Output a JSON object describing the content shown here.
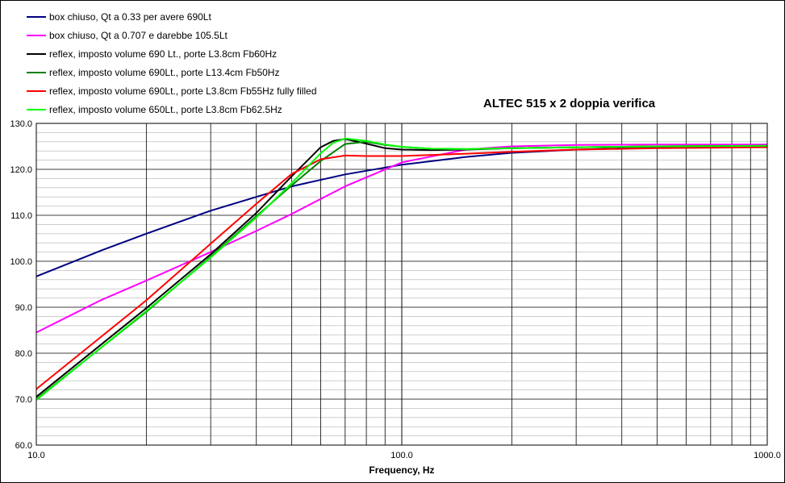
{
  "chart_data": {
    "type": "line",
    "title": "ALTEC 515 x 2 doppia verifica",
    "xlabel": "Frequency, Hz",
    "ylabel": "",
    "x_scale": "log",
    "xlim": [
      10,
      1000
    ],
    "ylim": [
      60,
      130
    ],
    "x_ticks": [
      "10.0",
      "100.0",
      "1000.0"
    ],
    "y_ticks": [
      "130.0",
      "120.0",
      "110.0",
      "100.0",
      "90.0",
      "80.0",
      "70.0",
      "60.0"
    ],
    "grid": true,
    "legend_position": "top-left",
    "series": [
      {
        "name": "box chiuso, Qt a 0.33 per avere 690Lt",
        "color": "#000080",
        "x": [
          10,
          15,
          20,
          30,
          40,
          50,
          70,
          100,
          150,
          200,
          300,
          500,
          700,
          1000
        ],
        "y": [
          96.7,
          102.3,
          106.0,
          111.0,
          114.0,
          116.3,
          118.9,
          121.0,
          122.7,
          123.6,
          124.3,
          124.8,
          125.0,
          125.1
        ]
      },
      {
        "name": "box chiuso, Qt a 0.707 e darebbe 105.5Lt",
        "color": "#ff00ff",
        "x": [
          10,
          15,
          20,
          30,
          40,
          50,
          70,
          100,
          150,
          200,
          300,
          500,
          700,
          1000
        ],
        "y": [
          84.5,
          91.5,
          95.8,
          102.0,
          106.6,
          110.3,
          116.3,
          121.5,
          124.3,
          125.0,
          125.3,
          125.4,
          125.4,
          125.4
        ]
      },
      {
        "name": "reflex, imposto volume 690 Lt., porte L3.8cm Fb60Hz",
        "color": "#000000",
        "x": [
          10,
          20,
          30,
          40,
          50,
          60,
          65,
          70,
          80,
          90,
          100,
          120,
          150,
          200,
          300,
          500,
          1000
        ],
        "y": [
          70.5,
          89.8,
          101.5,
          110.5,
          118.5,
          124.8,
          126.2,
          126.6,
          125.6,
          124.6,
          124.3,
          124.2,
          124.3,
          124.6,
          124.8,
          125.0,
          125.1
        ]
      },
      {
        "name": "reflex, imposto volume 690Lt., porte L13.4cm Fb50Hz",
        "color": "#008000",
        "x": [
          10,
          20,
          30,
          40,
          50,
          60,
          70,
          80,
          90,
          100,
          120,
          150,
          200,
          300,
          500,
          1000
        ],
        "y": [
          70.0,
          89.0,
          101.0,
          109.8,
          116.5,
          121.8,
          125.5,
          126.0,
          125.3,
          124.9,
          124.5,
          124.4,
          124.6,
          124.8,
          125.0,
          125.1
        ]
      },
      {
        "name": "reflex, imposto volume 690Lt., porte L3.8cm Fb55Hz fully filled",
        "color": "#ff0000",
        "x": [
          10,
          20,
          30,
          40,
          50,
          60,
          70,
          80,
          100,
          150,
          200,
          300,
          500,
          1000
        ],
        "y": [
          72.2,
          91.5,
          103.8,
          112.5,
          119.0,
          122.2,
          123.0,
          122.9,
          122.9,
          123.4,
          123.8,
          124.3,
          124.6,
          124.8
        ]
      },
      {
        "name": "reflex, imposto volume 650Lt., porte L3.8cm Fb62.5Hz",
        "color": "#00ff00",
        "x": [
          10,
          20,
          30,
          40,
          50,
          60,
          65,
          70,
          80,
          90,
          100,
          120,
          150,
          200,
          300,
          500,
          1000
        ],
        "y": [
          69.8,
          89.2,
          100.8,
          109.5,
          117.0,
          123.5,
          125.8,
          126.7,
          126.2,
          125.4,
          124.9,
          124.5,
          124.4,
          124.6,
          124.8,
          125.0,
          125.1
        ]
      }
    ]
  }
}
